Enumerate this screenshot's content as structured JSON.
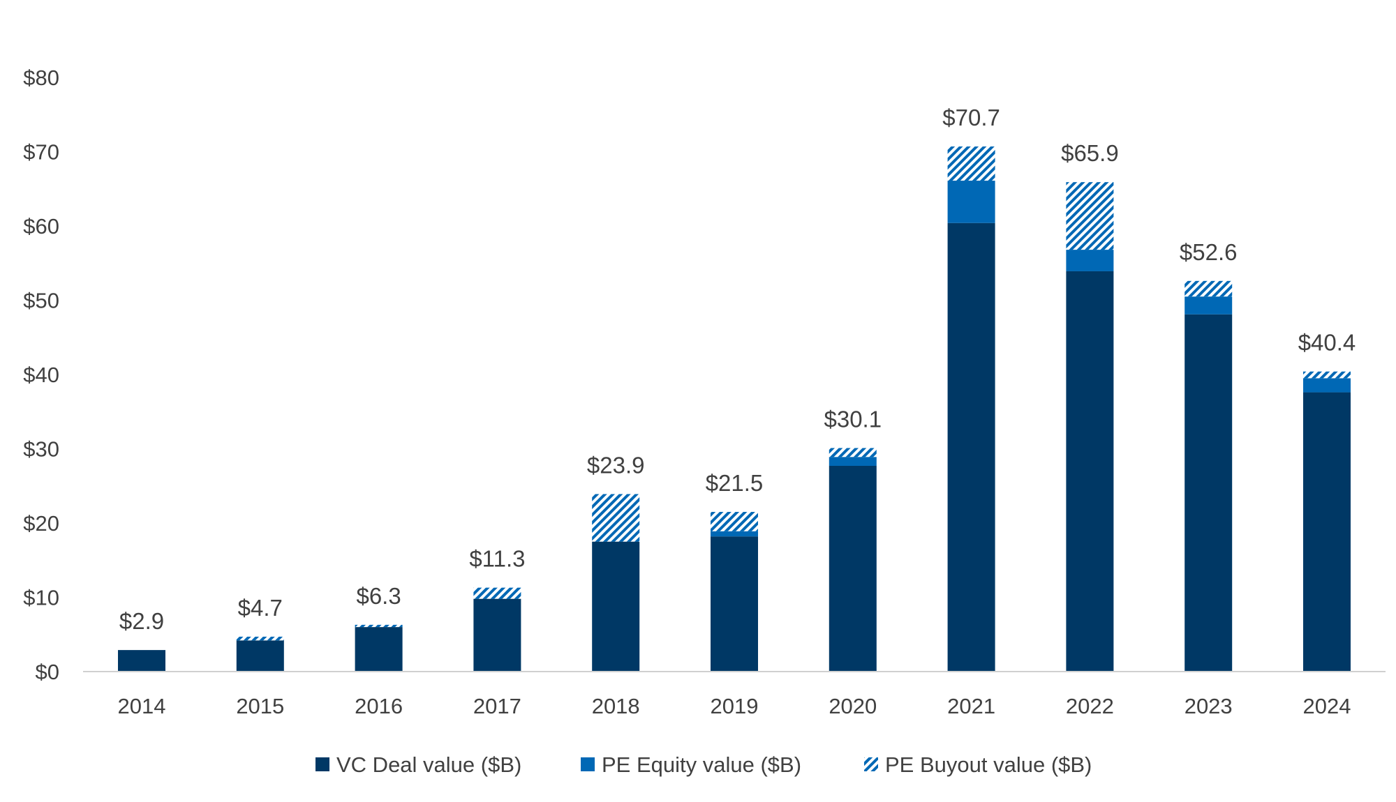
{
  "chart_data": {
    "type": "bar",
    "stacked": true,
    "categories": [
      "2014",
      "2015",
      "2016",
      "2017",
      "2018",
      "2019",
      "2020",
      "2021",
      "2022",
      "2023",
      "2024"
    ],
    "series": [
      {
        "name": "VC Deal value ($B)",
        "color": "#003865",
        "pattern": "solid",
        "values": [
          2.9,
          4.2,
          6.0,
          9.8,
          17.5,
          18.2,
          27.7,
          60.4,
          53.9,
          48.1,
          37.6
        ]
      },
      {
        "name": "PE Equity value ($B)",
        "color": "#0068B5",
        "pattern": "solid",
        "values": [
          0.0,
          0.0,
          0.0,
          0.0,
          0.0,
          0.7,
          1.2,
          5.7,
          2.9,
          2.4,
          1.9
        ]
      },
      {
        "name": "PE Buyout value ($B)",
        "color": "#0068B5",
        "pattern": "diagonal-hatch",
        "values": [
          0.0,
          0.5,
          0.3,
          1.5,
          6.4,
          2.6,
          1.2,
          4.6,
          9.1,
          2.1,
          0.9
        ]
      }
    ],
    "total_labels": [
      "$2.9",
      "$4.7",
      "$6.3",
      "$11.3",
      "$23.9",
      "$21.5",
      "$30.1",
      "$70.7",
      "$65.9",
      "$52.6",
      "$40.4"
    ],
    "y_ticks": [
      "$0",
      "$10",
      "$20",
      "$30",
      "$40",
      "$50",
      "$60",
      "$70",
      "$80"
    ],
    "ylim": [
      0,
      80
    ],
    "title": "",
    "xlabel": "",
    "ylabel": "",
    "grid": false,
    "legend_position": "bottom"
  }
}
